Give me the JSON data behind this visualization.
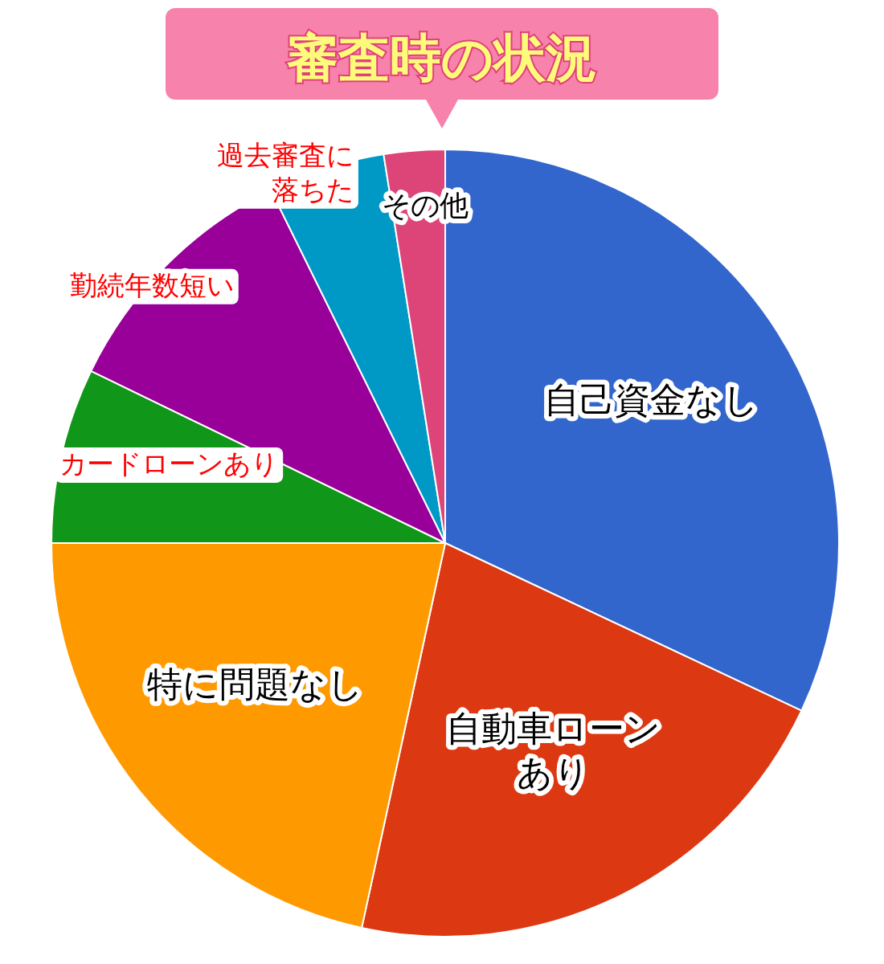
{
  "chart_data": {
    "type": "pie",
    "title": "審査時の状況",
    "categories": [
      "自己資金なし",
      "自動車ローンあり",
      "特に問題なし",
      "カードローンあり",
      "勤続年数短い",
      "過去審査に落ちた",
      "その他"
    ],
    "values": [
      32,
      21.4,
      21.6,
      7.2,
      10.5,
      4.8,
      2.5
    ],
    "colors": [
      "#3366cc",
      "#dc3912",
      "#ff9900",
      "#109618",
      "#990099",
      "#0099c6",
      "#dd4477"
    ],
    "legend": false
  }
}
